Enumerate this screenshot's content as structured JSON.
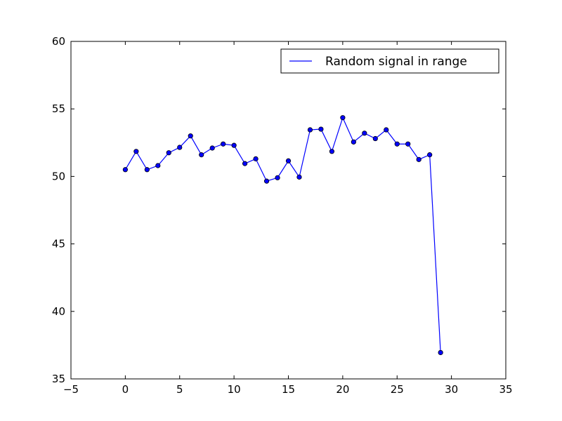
{
  "chart_data": {
    "type": "line",
    "title": "",
    "xlabel": "",
    "ylabel": "",
    "xlim": [
      -5,
      35
    ],
    "ylim": [
      35,
      60
    ],
    "xticks": [
      -5,
      0,
      5,
      10,
      15,
      20,
      25,
      30,
      35
    ],
    "yticks": [
      35,
      40,
      45,
      50,
      55,
      60
    ],
    "xtick_labels": [
      "−5",
      "0",
      "5",
      "10",
      "15",
      "20",
      "25",
      "30",
      "35"
    ],
    "ytick_labels": [
      "35",
      "40",
      "45",
      "50",
      "55",
      "60"
    ],
    "grid": false,
    "legend_position": "top-right",
    "series": [
      {
        "name": "Random signal in range",
        "color": "#0000ff",
        "marker": "circle",
        "x": [
          0,
          1,
          2,
          3,
          4,
          5,
          6,
          7,
          8,
          9,
          10,
          11,
          12,
          13,
          14,
          15,
          16,
          17,
          18,
          19,
          20,
          21,
          22,
          23,
          24,
          25,
          26,
          27,
          28,
          29
        ],
        "y": [
          50.5,
          51.85,
          50.5,
          50.8,
          51.75,
          52.15,
          53.0,
          51.6,
          52.1,
          52.4,
          52.3,
          50.95,
          51.3,
          49.65,
          49.9,
          51.15,
          49.95,
          53.45,
          53.5,
          51.85,
          54.35,
          52.55,
          53.2,
          52.8,
          53.45,
          52.4,
          52.4,
          51.25,
          51.6,
          36.95
        ]
      }
    ]
  }
}
